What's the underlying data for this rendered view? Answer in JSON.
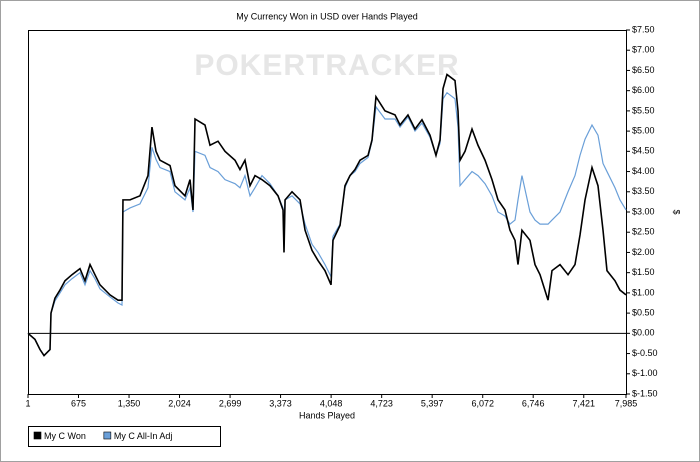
{
  "chart_data": {
    "type": "line",
    "title": "My Currency Won in USD over Hands Played",
    "watermark": "POKERTRACKER",
    "x_label": "Hands Played",
    "y_label": "$",
    "x": [
      1,
      94,
      161,
      215,
      295,
      308,
      361,
      428,
      495,
      588,
      695,
      762,
      829,
      895,
      962,
      1096,
      1203,
      1256,
      1269,
      1363,
      1496,
      1603,
      1656,
      1710,
      1763,
      1897,
      1963,
      2097,
      2164,
      2204,
      2231,
      2364,
      2431,
      2538,
      2631,
      2765,
      2831,
      2898,
      2965,
      3032,
      3125,
      3232,
      3339,
      3406,
      3419,
      3433,
      3526,
      3633,
      3700,
      3793,
      3873,
      3966,
      4047,
      4073,
      4167,
      4233,
      4300,
      4367,
      4434,
      4541,
      4594,
      4647,
      4767,
      4901,
      4968,
      5074,
      5168,
      5261,
      5368,
      5448,
      5502,
      5542,
      5595,
      5702,
      5742,
      5769,
      5836,
      5929,
      6009,
      6103,
      6196,
      6276,
      6369,
      6436,
      6503,
      6543,
      6596,
      6703,
      6770,
      6837,
      6944,
      6997,
      7104,
      7211,
      7304,
      7371,
      7438,
      7531,
      7611,
      7678,
      7731,
      7838,
      7904,
      7985
    ],
    "series": [
      {
        "name": "My C Won",
        "color": "#000000",
        "values": [
          0,
          -0.15,
          -0.4,
          -0.55,
          -0.4,
          0.5,
          0.87,
          1.07,
          1.3,
          1.45,
          1.6,
          1.3,
          1.7,
          1.45,
          1.2,
          0.95,
          0.82,
          0.82,
          3.3,
          3.3,
          3.4,
          3.9,
          5.1,
          4.5,
          4.28,
          4.15,
          3.65,
          3.4,
          3.8,
          3.05,
          5.3,
          5.15,
          4.65,
          4.75,
          4.5,
          4.28,
          4.05,
          4.28,
          3.65,
          3.9,
          3.8,
          3.65,
          3.4,
          3.05,
          2.0,
          3.3,
          3.5,
          3.3,
          2.55,
          2.05,
          1.8,
          1.55,
          1.2,
          2.3,
          2.67,
          3.65,
          3.9,
          4.05,
          4.28,
          4.4,
          4.78,
          5.85,
          5.5,
          5.4,
          5.15,
          5.4,
          5.05,
          5.28,
          4.9,
          4.4,
          4.78,
          6.05,
          6.4,
          6.25,
          5.5,
          4.28,
          4.5,
          5.05,
          4.65,
          4.28,
          3.8,
          3.3,
          3.05,
          2.55,
          2.3,
          1.7,
          2.55,
          2.3,
          1.7,
          1.45,
          0.82,
          1.55,
          1.7,
          1.45,
          1.7,
          2.43,
          3.3,
          4.1,
          3.65,
          2.55,
          1.55,
          1.3,
          1.07,
          0.95
        ]
      },
      {
        "name": "My C All-In Adj",
        "color": "#6a9fd8",
        "values": [
          0,
          -0.15,
          -0.4,
          -0.55,
          -0.4,
          0.5,
          0.8,
          1.0,
          1.2,
          1.35,
          1.5,
          1.2,
          1.55,
          1.35,
          1.1,
          0.9,
          0.75,
          0.7,
          3.0,
          3.1,
          3.2,
          3.6,
          4.6,
          4.3,
          4.1,
          4.0,
          3.5,
          3.3,
          3.6,
          3.0,
          4.5,
          4.4,
          4.1,
          4.0,
          3.8,
          3.7,
          3.6,
          3.9,
          3.4,
          3.6,
          3.9,
          3.7,
          3.4,
          3.1,
          2.1,
          3.3,
          3.4,
          3.2,
          2.7,
          2.2,
          2.0,
          1.7,
          1.4,
          2.4,
          2.7,
          3.6,
          3.9,
          4.0,
          4.2,
          4.35,
          4.75,
          5.6,
          5.3,
          5.3,
          5.1,
          5.35,
          5.0,
          5.2,
          4.85,
          4.4,
          4.7,
          5.8,
          5.95,
          5.8,
          5.1,
          3.65,
          3.8,
          4.0,
          3.9,
          3.7,
          3.4,
          3.0,
          2.9,
          2.7,
          2.8,
          3.3,
          3.9,
          3.0,
          2.8,
          2.7,
          2.7,
          2.8,
          3.0,
          3.5,
          3.9,
          4.4,
          4.8,
          5.15,
          4.9,
          4.2,
          4.0,
          3.6,
          3.3,
          3.05
        ]
      }
    ],
    "xlim": [
      1,
      7985
    ],
    "xticks": [
      1,
      675,
      {
        "value": 1350,
        "label": "1,350"
      },
      {
        "value": 2024,
        "label": "2,024"
      },
      {
        "value": 2699,
        "label": "2,699"
      },
      {
        "value": 3373,
        "label": "3,373"
      },
      {
        "value": 4048,
        "label": "4,048"
      },
      {
        "value": 4723,
        "label": "4,723"
      },
      {
        "value": 5397,
        "label": "5,397"
      },
      {
        "value": 6072,
        "label": "6,072"
      },
      {
        "value": 6746,
        "label": "6,746"
      },
      {
        "value": 7421,
        "label": "7,421"
      },
      {
        "value": 7985,
        "label": "7,985"
      }
    ],
    "ylim": [
      -1.5,
      7.5
    ],
    "yticks": [
      {
        "value": 7.5,
        "label": "$7.50"
      },
      {
        "value": 7,
        "label": "$7.00"
      },
      {
        "value": 6.5,
        "label": "$6.50"
      },
      {
        "value": 6,
        "label": "$6.00"
      },
      {
        "value": 5.5,
        "label": "$5.50"
      },
      {
        "value": 5,
        "label": "$5.00"
      },
      {
        "value": 4.5,
        "label": "$4.50"
      },
      {
        "value": 4,
        "label": "$4.00"
      },
      {
        "value": 3.5,
        "label": "$3.50"
      },
      {
        "value": 3,
        "label": "$3.00"
      },
      {
        "value": 2.5,
        "label": "$2.50"
      },
      {
        "value": 2,
        "label": "$2.00"
      },
      {
        "value": 1.5,
        "label": "$1.50"
      },
      {
        "value": 1,
        "label": "$1.00"
      },
      {
        "value": 0.5,
        "label": "$0.50"
      },
      {
        "value": 0,
        "label": "$0.00"
      },
      {
        "value": -0.5,
        "label": "$-0.50"
      },
      {
        "value": -1,
        "label": "$-1.00"
      },
      {
        "value": -1.5,
        "label": "$-1.50"
      }
    ],
    "hline": 0,
    "grid": false,
    "legend": "bottom-left"
  }
}
